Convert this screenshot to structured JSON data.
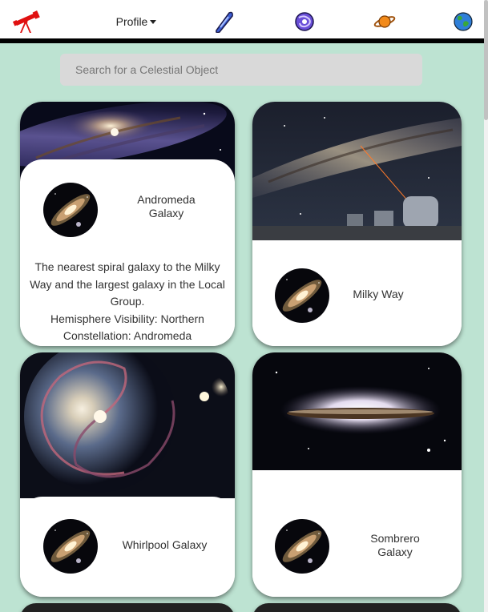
{
  "nav": {
    "logo_icon": "telescope-icon",
    "profile_label": "Profile",
    "icons": [
      "comet-icon",
      "galaxy-icon",
      "planet-icon",
      "earth-icon"
    ]
  },
  "search": {
    "placeholder": "Search for a Celestial Object",
    "value": ""
  },
  "cards": [
    {
      "name": "Andromeda Galaxy",
      "description": "The nearest spiral galaxy to the Milky Way and the largest galaxy in the Local Group.",
      "hemisphere": "Hemisphere Visibility: Northern",
      "constellation": "Constellation: Andromeda"
    },
    {
      "name": "Milky Way"
    },
    {
      "name": "Whirlpool Galaxy"
    },
    {
      "name": "Sombrero Galaxy"
    }
  ],
  "colors": {
    "background": "#bde3d2",
    "card": "#ffffff",
    "search": "#d9d9d9",
    "logo": "#e01010",
    "comet": "#3d5fd6",
    "planet": "#f28a1a"
  }
}
